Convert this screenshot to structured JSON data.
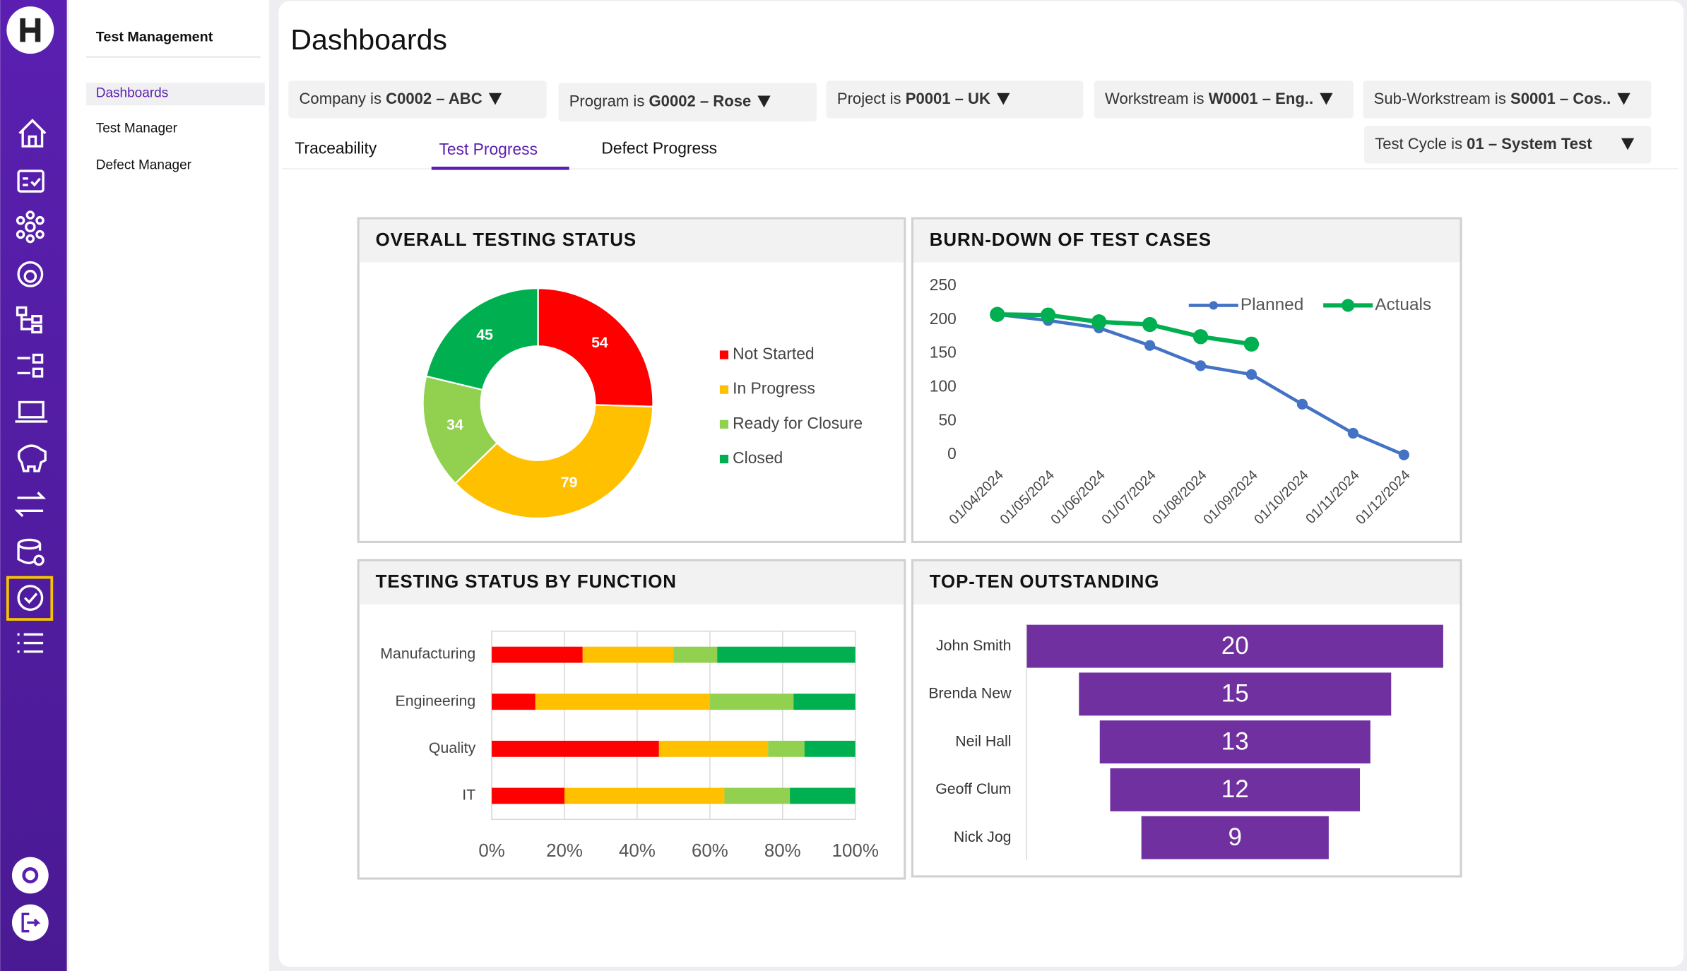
{
  "nav": {
    "title": "Test Management",
    "items": [
      "Dashboards",
      "Test Manager",
      "Defect Manager"
    ]
  },
  "header": {
    "title": "Dashboards"
  },
  "filters": [
    {
      "label": "Company is",
      "value": "C0002 – ABC"
    },
    {
      "label": "Program is",
      "value": "G0002 – Rose"
    },
    {
      "label": "Project is",
      "value": "P0001 – UK"
    },
    {
      "label": "Workstream is",
      "value": "W0001 – Eng.."
    },
    {
      "label": "Sub-Workstream is",
      "value": "S0001 – Cos.."
    },
    {
      "label": "Test Cycle is",
      "value": "01 – System Test"
    }
  ],
  "tabs": [
    "Traceability",
    "Test Progress",
    "Defect Progress"
  ],
  "chart_data": [
    {
      "type": "pie",
      "title": "OVERALL TESTING STATUS",
      "categories": [
        "Not Started",
        "In Progress",
        "Ready for Closure",
        "Closed"
      ],
      "values": [
        54,
        79,
        34,
        45
      ],
      "colors": [
        "#ff0000",
        "#ffc000",
        "#92d050",
        "#00b050"
      ]
    },
    {
      "type": "line",
      "title": "BURN-DOWN OF TEST CASES",
      "categories": [
        "01/04/2024",
        "01/05/2024",
        "01/06/2024",
        "01/07/2024",
        "01/08/2024",
        "01/09/2024",
        "01/10/2024",
        "01/11/2024",
        "01/12/2024"
      ],
      "series": [
        {
          "name": "Planned",
          "color": "#4472c4",
          "values": [
            208,
            199,
            188,
            162,
            132,
            119,
            75,
            32,
            0
          ]
        },
        {
          "name": "Actuals",
          "color": "#00b050",
          "values": [
            208,
            207,
            197,
            193,
            175,
            164,
            null,
            null,
            null
          ]
        }
      ],
      "ylim": [
        0,
        250
      ],
      "yticks": [
        0,
        50,
        100,
        150,
        200,
        250
      ]
    },
    {
      "type": "bar",
      "title": "TESTING STATUS BY FUNCTION",
      "horizontal": true,
      "stacked": true,
      "categories": [
        "Manufacturing",
        "Engineering",
        "Quality",
        "IT"
      ],
      "series": [
        {
          "color": "#ff0000",
          "values": [
            25,
            12,
            46,
            20
          ]
        },
        {
          "color": "#ffc000",
          "values": [
            25,
            48,
            30,
            44
          ]
        },
        {
          "color": "#92d050",
          "values": [
            12,
            23,
            10,
            18
          ]
        },
        {
          "color": "#00b050",
          "values": [
            38,
            17,
            14,
            18
          ]
        }
      ],
      "xlim": [
        0,
        100
      ],
      "xticks": [
        {
          "value": 0,
          "label": "0%"
        },
        {
          "value": 20,
          "label": "20%"
        },
        {
          "value": 40,
          "label": "40%"
        },
        {
          "value": 60,
          "label": "60%"
        },
        {
          "value": 80,
          "label": "80%"
        },
        {
          "value": 100,
          "label": "100%"
        }
      ],
      "grid": true
    },
    {
      "type": "funnel",
      "title": "TOP-TEN OUTSTANDING",
      "categories": [
        "John Smith",
        "Brenda New",
        "Neil Hall",
        "Geoff Clum",
        "Nick Jog"
      ],
      "values": [
        20,
        15,
        13,
        12,
        9
      ],
      "color": "#7030a0"
    }
  ]
}
